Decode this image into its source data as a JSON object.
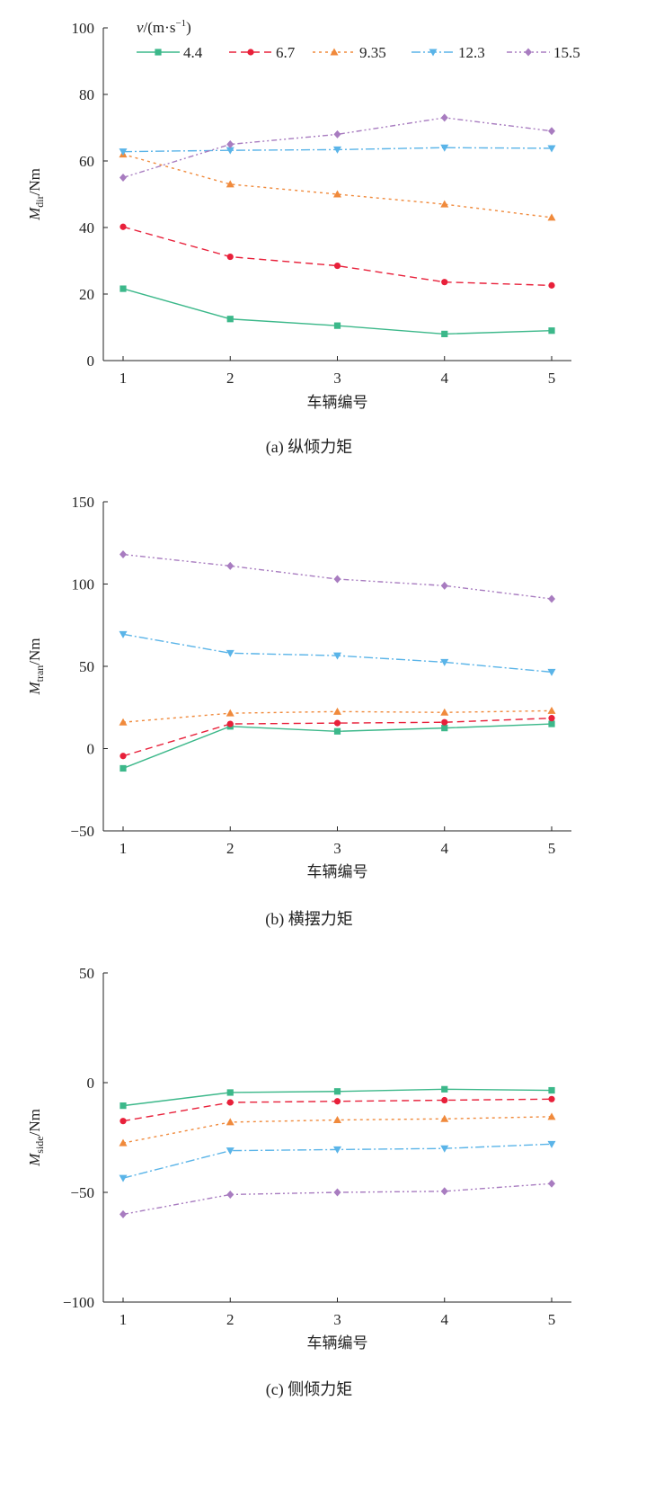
{
  "chart_data": [
    {
      "type": "line",
      "id": "a",
      "caption": "(a)  纵倾力矩",
      "xlabel": "车辆编号",
      "ylabel": {
        "symbol": "M",
        "sub": "dir",
        "unit": "/Nm"
      },
      "x": [
        1,
        2,
        3,
        4,
        5
      ],
      "ylim": [
        0,
        100
      ],
      "yticks": [
        0,
        20,
        40,
        60,
        80,
        100
      ],
      "legend": {
        "title_symbol": "v",
        "title_unit": "/(m·s",
        "title_exp": "−1",
        "title_close": ")",
        "placement": "top"
      },
      "series": [
        {
          "name": "4.4",
          "values": [
            21.6,
            12.5,
            10.5,
            8.0,
            9.0
          ]
        },
        {
          "name": "6.7",
          "values": [
            40.2,
            31.2,
            28.5,
            23.6,
            22.6
          ]
        },
        {
          "name": "9.35",
          "values": [
            62.0,
            53.0,
            50.0,
            47.0,
            43.0
          ]
        },
        {
          "name": "12.3",
          "values": [
            62.8,
            63.2,
            63.4,
            64.0,
            63.8
          ]
        },
        {
          "name": "15.5",
          "values": [
            55.0,
            65.0,
            68.0,
            73.0,
            69.0
          ]
        }
      ]
    },
    {
      "type": "line",
      "id": "b",
      "caption": "(b)  横摆力矩",
      "xlabel": "车辆编号",
      "ylabel": {
        "symbol": "M",
        "sub": "tran",
        "unit": "/Nm"
      },
      "x": [
        1,
        2,
        3,
        4,
        5
      ],
      "ylim": [
        -50,
        150
      ],
      "yticks": [
        -50,
        0,
        50,
        100,
        150
      ],
      "series": [
        {
          "name": "4.4",
          "values": [
            -12.0,
            13.5,
            10.5,
            12.5,
            15.0
          ]
        },
        {
          "name": "6.7",
          "values": [
            -4.5,
            15.0,
            15.5,
            16.0,
            18.5
          ]
        },
        {
          "name": "9.35",
          "values": [
            16.0,
            21.5,
            22.5,
            22.0,
            23.0
          ]
        },
        {
          "name": "12.3",
          "values": [
            69.5,
            58.0,
            56.5,
            52.5,
            46.5
          ]
        },
        {
          "name": "15.5",
          "values": [
            118.0,
            111.0,
            103.0,
            99.0,
            91.0
          ]
        }
      ]
    },
    {
      "type": "line",
      "id": "c",
      "caption": "(c)  侧倾力矩",
      "xlabel": "车辆编号",
      "ylabel": {
        "symbol": "M",
        "sub": "side",
        "unit": "/Nm"
      },
      "x": [
        1,
        2,
        3,
        4,
        5
      ],
      "ylim": [
        -100,
        50
      ],
      "yticks": [
        -100,
        -50,
        0,
        50
      ],
      "series": [
        {
          "name": "4.4",
          "values": [
            -10.5,
            -4.5,
            -4.0,
            -3.0,
            -3.5
          ]
        },
        {
          "name": "6.7",
          "values": [
            -17.5,
            -9.0,
            -8.5,
            -8.0,
            -7.5
          ]
        },
        {
          "name": "9.35",
          "values": [
            -27.5,
            -18.0,
            -17.0,
            -16.5,
            -15.5
          ]
        },
        {
          "name": "12.3",
          "values": [
            -43.5,
            -31.0,
            -30.5,
            -30.0,
            -28.0
          ]
        },
        {
          "name": "15.5",
          "values": [
            -60.0,
            -51.0,
            -50.0,
            -49.5,
            -46.0
          ]
        }
      ]
    }
  ],
  "series_style": {
    "colors": [
      "#3cb88a",
      "#e8203a",
      "#f08a3c",
      "#5ab4e8",
      "#a87cc0"
    ],
    "markers": [
      "square",
      "circle",
      "triangle-up",
      "triangle-down",
      "diamond"
    ]
  }
}
